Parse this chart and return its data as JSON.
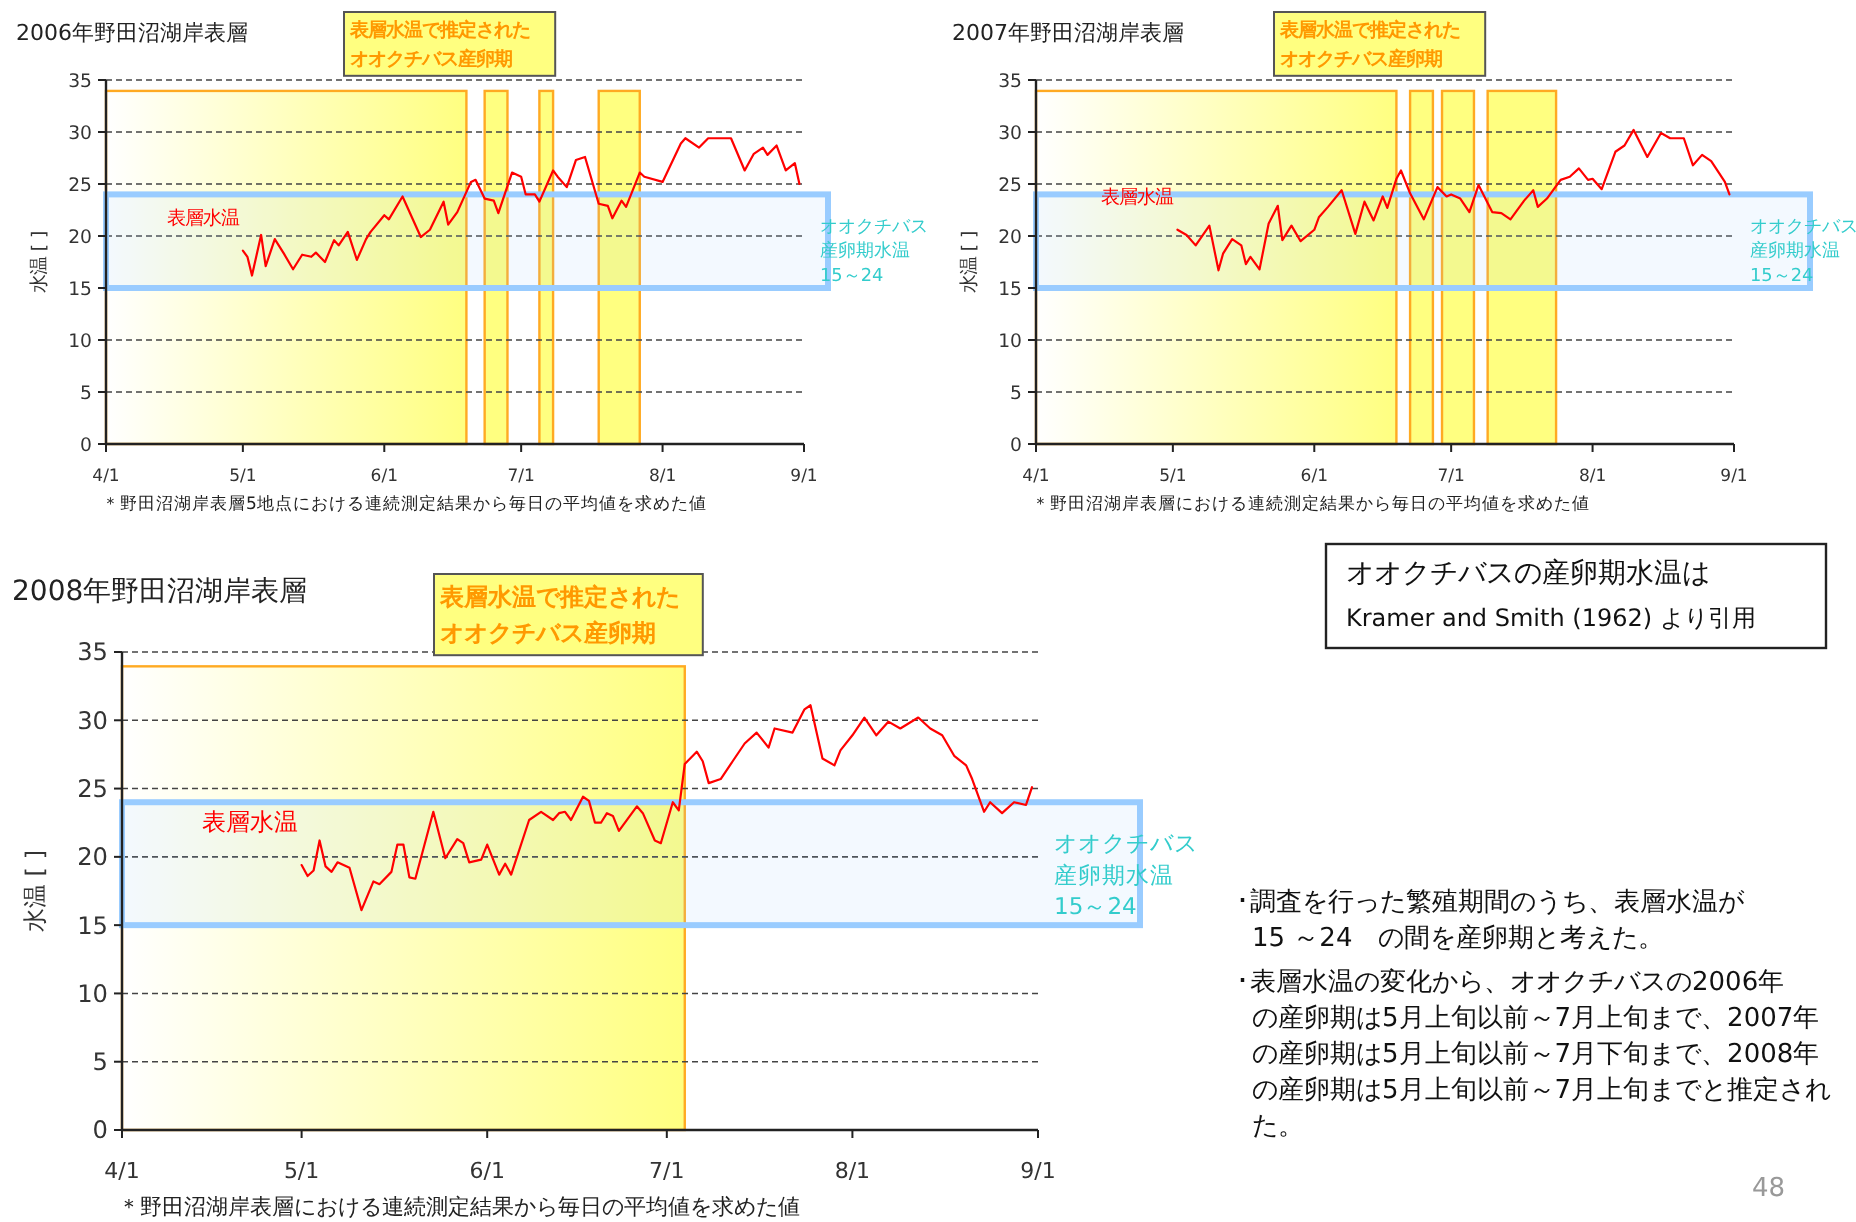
{
  "chart_data": [
    {
      "type": "line",
      "title": "2006年野田沼湖岸表層",
      "ylabel": "水温 [ ]",
      "xlim": [
        "2006-04-01",
        "2006-09-01"
      ],
      "xticks": [
        {
          "value": "2006-04-01",
          "label": "4/1"
        },
        {
          "value": "2006-05-01",
          "label": "5/1"
        },
        {
          "value": "2006-06-01",
          "label": "6/1"
        },
        {
          "value": "2006-07-01",
          "label": "7/1"
        },
        {
          "value": "2006-08-01",
          "label": "8/1"
        },
        {
          "value": "2006-09-01",
          "label": "9/1"
        }
      ],
      "ylim": [
        0,
        35
      ],
      "yticks": [
        0,
        5,
        10,
        15,
        20,
        25,
        30,
        35
      ],
      "grid": "y",
      "x": [
        "2006-05-01",
        "2006-05-02",
        "2006-05-03",
        "2006-05-05",
        "2006-05-06",
        "2006-05-08",
        "2006-05-10",
        "2006-05-12",
        "2006-05-14",
        "2006-05-16",
        "2006-05-17",
        "2006-05-19",
        "2006-05-21",
        "2006-05-22",
        "2006-05-24",
        "2006-05-26",
        "2006-05-28",
        "2006-05-29",
        "2006-06-01",
        "2006-06-02",
        "2006-06-05",
        "2006-06-09",
        "2006-06-11",
        "2006-06-14",
        "2006-06-15",
        "2006-06-17",
        "2006-06-20",
        "2006-06-21",
        "2006-06-23",
        "2006-06-25",
        "2006-06-26",
        "2006-06-29",
        "2006-07-01",
        "2006-07-02",
        "2006-07-04",
        "2006-07-05",
        "2006-07-08",
        "2006-07-09",
        "2006-07-11",
        "2006-07-13",
        "2006-07-15",
        "2006-07-18",
        "2006-07-20",
        "2006-07-21",
        "2006-07-23",
        "2006-07-24",
        "2006-07-27",
        "2006-07-28",
        "2006-08-01",
        "2006-08-05",
        "2006-08-06",
        "2006-08-09",
        "2006-08-11",
        "2006-08-16",
        "2006-08-19",
        "2006-08-21",
        "2006-08-23",
        "2006-08-24",
        "2006-08-26",
        "2006-08-28",
        "2006-08-30",
        "2006-08-31"
      ],
      "series": [
        {
          "name": "表層水温",
          "color": "#ff0000",
          "values": [
            18.6,
            18.0,
            16.2,
            20.1,
            17.1,
            19.7,
            18.3,
            16.8,
            18.2,
            18.0,
            18.4,
            17.5,
            19.6,
            19.1,
            20.4,
            17.7,
            19.7,
            20.4,
            22.0,
            21.6,
            23.8,
            19.9,
            20.6,
            23.3,
            21.1,
            22.3,
            25.2,
            25.4,
            23.6,
            23.4,
            22.2,
            26.1,
            25.7,
            24.0,
            24.0,
            23.3,
            26.3,
            25.7,
            24.7,
            27.3,
            27.6,
            23.1,
            22.9,
            21.7,
            23.4,
            22.8,
            26.1,
            25.7,
            25.2,
            28.9,
            29.4,
            28.5,
            29.4,
            29.4,
            26.3,
            27.9,
            28.5,
            27.8,
            28.7,
            26.3,
            27.0,
            25.0
          ]
        }
      ],
      "bands": [
        {
          "axis": "x",
          "from": "2006-04-01",
          "to": "2006-06-19",
          "label": "表層水温で推定されたオオクチバス産卵期",
          "color": "#ffff80"
        },
        {
          "axis": "x",
          "from": "2006-06-23",
          "to": "2006-06-28",
          "color": "#ffff80"
        },
        {
          "axis": "x",
          "from": "2006-07-05",
          "to": "2006-07-08",
          "color": "#ffff80"
        },
        {
          "axis": "x",
          "from": "2006-07-18",
          "to": "2006-07-27",
          "color": "#ffff80"
        },
        {
          "axis": "y",
          "from": 15,
          "to": 24,
          "label": "オオクチバス産卵期水温15～24",
          "color": "#99ccff"
        }
      ],
      "annotations": [
        "＊野田沼湖岸表層5地点における連続測定結果から毎日の平均値を求めた値"
      ]
    },
    {
      "type": "line",
      "title": "2007年野田沼湖岸表層",
      "ylabel": "水温 [ ]",
      "xlim": [
        "2007-04-01",
        "2007-09-01"
      ],
      "xticks": [
        {
          "value": "2007-04-01",
          "label": "4/1"
        },
        {
          "value": "2007-05-01",
          "label": "5/1"
        },
        {
          "value": "2007-06-01",
          "label": "6/1"
        },
        {
          "value": "2007-07-01",
          "label": "7/1"
        },
        {
          "value": "2007-08-01",
          "label": "8/1"
        },
        {
          "value": "2007-09-01",
          "label": "9/1"
        }
      ],
      "ylim": [
        0,
        35
      ],
      "yticks": [
        0,
        5,
        10,
        15,
        20,
        25,
        30,
        35
      ],
      "grid": "y",
      "x": [
        "2007-05-02",
        "2007-05-04",
        "2007-05-06",
        "2007-05-09",
        "2007-05-11",
        "2007-05-12",
        "2007-05-14",
        "2007-05-16",
        "2007-05-17",
        "2007-05-18",
        "2007-05-20",
        "2007-05-22",
        "2007-05-24",
        "2007-05-25",
        "2007-05-27",
        "2007-05-29",
        "2007-06-01",
        "2007-06-02",
        "2007-06-04",
        "2007-06-07",
        "2007-06-10",
        "2007-06-12",
        "2007-06-14",
        "2007-06-16",
        "2007-06-17",
        "2007-06-19",
        "2007-06-20",
        "2007-06-22",
        "2007-06-25",
        "2007-06-28",
        "2007-06-30",
        "2007-07-01",
        "2007-07-03",
        "2007-07-05",
        "2007-07-07",
        "2007-07-10",
        "2007-07-12",
        "2007-07-14",
        "2007-07-17",
        "2007-07-19",
        "2007-07-20",
        "2007-07-22",
        "2007-07-25",
        "2007-07-27",
        "2007-07-29",
        "2007-07-31",
        "2007-08-01",
        "2007-08-03",
        "2007-08-06",
        "2007-08-08",
        "2007-08-10",
        "2007-08-13",
        "2007-08-16",
        "2007-08-18",
        "2007-08-21",
        "2007-08-23",
        "2007-08-25",
        "2007-08-27",
        "2007-08-30",
        "2007-08-31"
      ],
      "series": [
        {
          "name": "表層水温",
          "color": "#ff0000",
          "values": [
            20.6,
            20.1,
            19.1,
            21.0,
            16.7,
            18.3,
            19.7,
            19.1,
            17.3,
            18.0,
            16.8,
            21.2,
            22.9,
            19.6,
            21.0,
            19.5,
            20.6,
            21.8,
            22.8,
            24.4,
            20.2,
            23.3,
            21.5,
            23.8,
            22.7,
            25.5,
            26.3,
            24.1,
            21.6,
            24.7,
            23.8,
            24.0,
            23.6,
            22.3,
            24.9,
            22.3,
            22.2,
            21.6,
            23.4,
            24.4,
            22.8,
            23.6,
            25.4,
            25.7,
            26.5,
            25.4,
            25.5,
            24.5,
            28.1,
            28.7,
            30.2,
            27.6,
            29.9,
            29.4,
            29.4,
            26.8,
            27.8,
            27.2,
            25.2,
            24.0
          ]
        }
      ],
      "bands": [
        {
          "axis": "x",
          "from": "2007-04-01",
          "to": "2007-06-19",
          "label": "表層水温で推定されたオオクチバス産卵期",
          "color": "#ffff80"
        },
        {
          "axis": "x",
          "from": "2007-06-22",
          "to": "2007-06-27",
          "color": "#ffff80"
        },
        {
          "axis": "x",
          "from": "2007-06-29",
          "to": "2007-07-06",
          "color": "#ffff80"
        },
        {
          "axis": "x",
          "from": "2007-07-09",
          "to": "2007-07-24",
          "color": "#ffff80"
        },
        {
          "axis": "y",
          "from": 15,
          "to": 24,
          "label": "オオクチバス産卵期水温15～24",
          "color": "#99ccff"
        }
      ],
      "annotations": [
        "＊野田沼湖岸表層における連続測定結果から毎日の平均値を求めた値"
      ]
    },
    {
      "type": "line",
      "title": "2008年野田沼湖岸表層",
      "ylabel": "水温 [ ]",
      "xlim": [
        "2008-04-01",
        "2008-09-01"
      ],
      "xticks": [
        {
          "value": "2008-04-01",
          "label": "4/1"
        },
        {
          "value": "2008-05-01",
          "label": "5/1"
        },
        {
          "value": "2008-06-01",
          "label": "6/1"
        },
        {
          "value": "2008-07-01",
          "label": "7/1"
        },
        {
          "value": "2008-08-01",
          "label": "8/1"
        },
        {
          "value": "2008-09-01",
          "label": "9/1"
        }
      ],
      "ylim": [
        0,
        35
      ],
      "yticks": [
        0,
        5,
        10,
        15,
        20,
        25,
        30,
        35
      ],
      "grid": "y",
      "x": [
        "2008-05-01",
        "2008-05-02",
        "2008-05-03",
        "2008-05-04",
        "2008-05-05",
        "2008-05-06",
        "2008-05-07",
        "2008-05-09",
        "2008-05-11",
        "2008-05-13",
        "2008-05-14",
        "2008-05-16",
        "2008-05-17",
        "2008-05-18",
        "2008-05-19",
        "2008-05-20",
        "2008-05-23",
        "2008-05-25",
        "2008-05-27",
        "2008-05-28",
        "2008-05-29",
        "2008-05-31",
        "2008-06-01",
        "2008-06-03",
        "2008-06-04",
        "2008-06-05",
        "2008-06-08",
        "2008-06-10",
        "2008-06-12",
        "2008-06-13",
        "2008-06-14",
        "2008-06-15",
        "2008-06-17",
        "2008-06-18",
        "2008-06-19",
        "2008-06-20",
        "2008-06-21",
        "2008-06-22",
        "2008-06-23",
        "2008-06-26",
        "2008-06-27",
        "2008-06-29",
        "2008-06-30",
        "2008-07-02",
        "2008-07-03",
        "2008-07-04",
        "2008-07-06",
        "2008-07-07",
        "2008-07-08",
        "2008-07-10",
        "2008-07-12",
        "2008-07-14",
        "2008-07-16",
        "2008-07-18",
        "2008-07-19",
        "2008-07-22",
        "2008-07-24",
        "2008-07-25",
        "2008-07-27",
        "2008-07-29",
        "2008-07-30",
        "2008-08-01",
        "2008-08-03",
        "2008-08-05",
        "2008-08-07",
        "2008-08-09",
        "2008-08-12",
        "2008-08-14",
        "2008-08-16",
        "2008-08-18",
        "2008-08-20",
        "2008-08-21",
        "2008-08-23",
        "2008-08-24",
        "2008-08-26",
        "2008-08-28",
        "2008-08-30",
        "2008-08-31"
      ],
      "series": [
        {
          "name": "表層水温",
          "color": "#ff0000",
          "values": [
            19.4,
            18.6,
            19.0,
            21.2,
            19.3,
            18.9,
            19.6,
            19.2,
            16.1,
            18.2,
            18.0,
            18.9,
            20.9,
            20.9,
            18.5,
            18.4,
            23.3,
            19.9,
            21.3,
            21.0,
            19.6,
            19.8,
            20.9,
            18.7,
            19.5,
            18.7,
            22.7,
            23.3,
            22.7,
            23.2,
            23.3,
            22.7,
            24.4,
            24.1,
            22.5,
            22.5,
            23.2,
            23.0,
            21.9,
            23.7,
            23.2,
            21.2,
            21.0,
            24.0,
            23.4,
            26.8,
            27.7,
            27.0,
            25.4,
            25.7,
            27.0,
            28.3,
            29.1,
            28.0,
            29.4,
            29.1,
            30.8,
            31.1,
            27.2,
            26.7,
            27.8,
            28.9,
            30.2,
            28.9,
            29.9,
            29.4,
            30.2,
            29.4,
            28.9,
            27.4,
            26.7,
            25.7,
            23.3,
            24.0,
            23.2,
            24.0,
            23.8,
            25.1
          ]
        }
      ],
      "bands": [
        {
          "axis": "x",
          "from": "2008-04-01",
          "to": "2008-07-04",
          "label": "表層水温で推定されたオオクチバス産卵期",
          "color": "#ffff80"
        },
        {
          "axis": "y",
          "from": 15,
          "to": 24,
          "label": "オオクチバス産卵期水温15～24",
          "color": "#99ccff"
        }
      ],
      "annotations": [
        "＊野田沼湖岸表層における連続測定結果から毎日の平均値を求めた値"
      ]
    },
    {
      "type": "other",
      "annotations": [
        "オオクチバスの産卵期水温は\nKramer   and Smith (1962) より引用",
        "･調査を行った繁殖期間のうち、表層水温が15 ～24　の間を産卵期と考えた。",
        "･表層水温の変化から、オオクチバスの2006年の産卵期は5月上旬以前～7月上旬まで、2007年の産卵期は5月上旬以前～7月下旬まで、2008年の産卵期は5月上旬以前～7月上旬までと推定された。",
        "48"
      ]
    }
  ]
}
